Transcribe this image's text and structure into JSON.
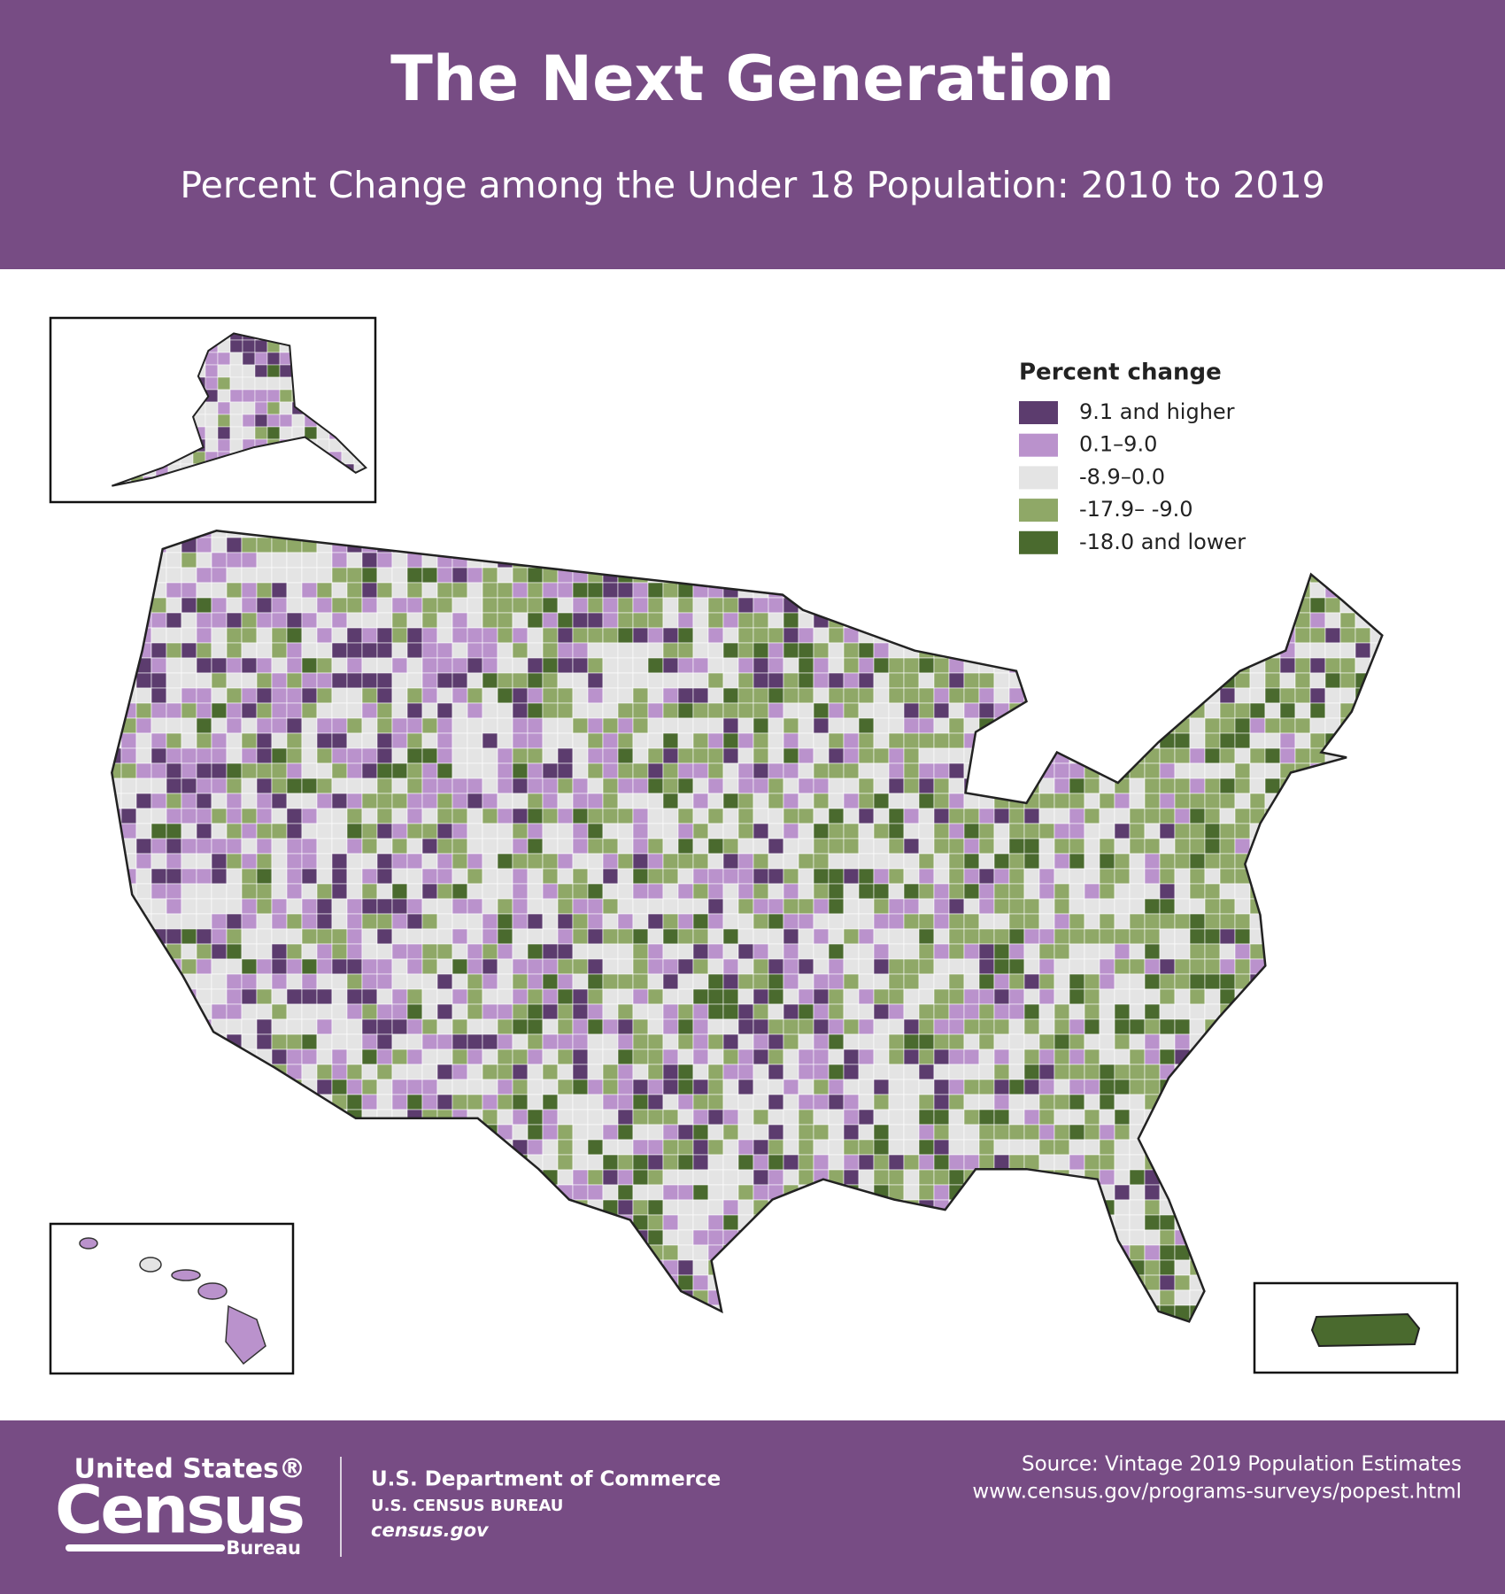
{
  "header": {
    "title": "The Next Generation",
    "subtitle": "Percent Change among the Under 18 Population: 2010 to 2019"
  },
  "legend": {
    "title": "Percent change",
    "items": [
      {
        "label": "9.1 and higher",
        "color": "#5c3c6e"
      },
      {
        "label": "0.1–9.0",
        "color": "#ba92cc"
      },
      {
        "label": "-8.9–0.0",
        "color": "#e4e4e4"
      },
      {
        "label": "-17.9– -9.0",
        "color": "#8fa867"
      },
      {
        "label": "-18.0 and lower",
        "color": "#4a6a2e"
      }
    ]
  },
  "footer": {
    "logo": {
      "line1": "United States®",
      "line2": "Census",
      "line3": "Bureau"
    },
    "agency": {
      "line1": "U.S. Department of Commerce",
      "line2": "U.S. CENSUS BUREAU",
      "line3": "census.gov"
    },
    "source": {
      "line1": "Source: Vintage 2019 Population Estimates",
      "line2": "www.census.gov/programs-surveys/popest.html"
    }
  }
}
